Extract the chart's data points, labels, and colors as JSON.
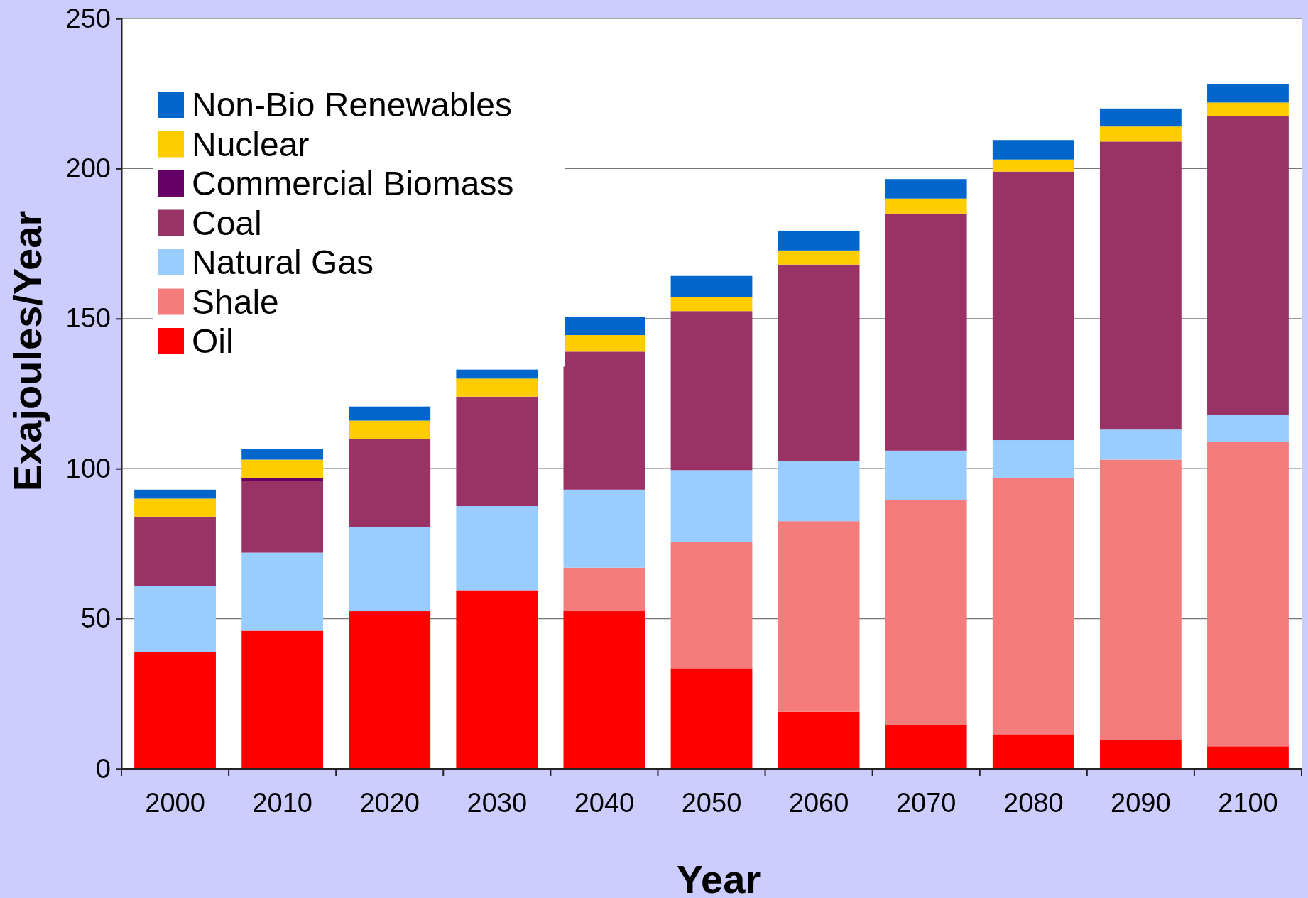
{
  "chart_data": {
    "type": "bar",
    "stacked": true,
    "xlabel": "Year",
    "ylabel": "Exajoules/Year",
    "categories": [
      "2000",
      "2010",
      "2020",
      "2030",
      "2040",
      "2050",
      "2060",
      "2070",
      "2080",
      "2090",
      "2100"
    ],
    "series": [
      {
        "name": "Oil",
        "color": "#ff0000",
        "values": [
          39,
          46,
          52.5,
          59.5,
          52.5,
          33.5,
          19,
          14.5,
          11.5,
          9.5,
          7.5
        ]
      },
      {
        "name": "Shale",
        "color": "#f47c7c",
        "values": [
          0,
          0,
          0,
          0,
          14.5,
          42,
          63.5,
          75,
          85.5,
          93.5,
          101.5
        ]
      },
      {
        "name": "Natural Gas",
        "color": "#99ccff",
        "values": [
          22,
          26,
          28,
          28,
          26,
          24,
          20,
          16.5,
          12.5,
          10,
          9
        ]
      },
      {
        "name": "Coal",
        "color": "#993366",
        "values": [
          23,
          24,
          29.5,
          36.5,
          46,
          53,
          65.5,
          79,
          89.5,
          96,
          99.5
        ]
      },
      {
        "name": "Commercial Biomass",
        "color": "#660066",
        "values": [
          0,
          1,
          0,
          0,
          0,
          0,
          0,
          0,
          0,
          0,
          0
        ]
      },
      {
        "name": "Nuclear",
        "color": "#ffcc00",
        "values": [
          6,
          6,
          6,
          6,
          5.5,
          4.7,
          4.7,
          5,
          4,
          5,
          4.5
        ]
      },
      {
        "name": "Non-Bio Renewables",
        "color": "#0066cc",
        "values": [
          3,
          3.5,
          4.7,
          3,
          6,
          7,
          6.6,
          6.5,
          6.5,
          6,
          6
        ]
      }
    ],
    "ylim": [
      0,
      250
    ],
    "yticks": [
      0,
      50,
      100,
      150,
      200,
      250
    ],
    "grid": "y",
    "legend": "top left"
  }
}
